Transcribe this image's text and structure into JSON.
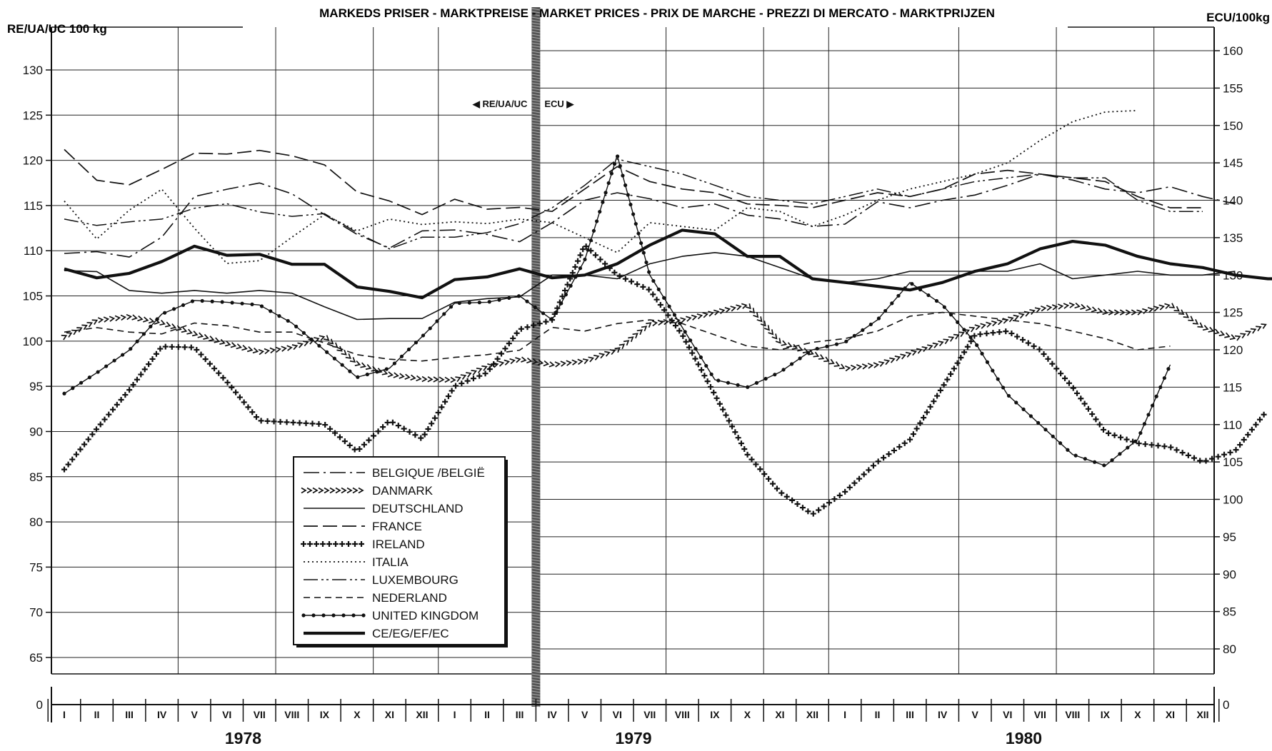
{
  "chart_data": {
    "type": "line",
    "title": "MARKEDS PRISER - MARKTPREISE - MARKET PRICES - PRIX DE MARCHE - PREZZI DI MERCATO - MARKTPRIJZEN",
    "ylabel_left": "RE/UA/UC 100 kg",
    "ylabel_right": "ECU/100kg",
    "left_axis_note": "◀ RE/UA/UC",
    "right_axis_note": "ECU ▶",
    "grid": true,
    "legend_position": "bottom-left",
    "y_left": {
      "range": [
        60,
        135
      ],
      "ticks": [
        65,
        70,
        75,
        80,
        85,
        90,
        95,
        100,
        105,
        110,
        115,
        120,
        125,
        130
      ],
      "zero_tick": 0
    },
    "y_right": {
      "range": [
        75,
        165
      ],
      "ticks": [
        80,
        85,
        90,
        95,
        100,
        105,
        110,
        115,
        120,
        125,
        130,
        135,
        140,
        145,
        150,
        155,
        160
      ],
      "zero_tick": 0
    },
    "months": [
      "I",
      "II",
      "III",
      "IV",
      "V",
      "VI",
      "VII",
      "VIII",
      "IX",
      "X",
      "XI",
      "XII",
      "I",
      "II",
      "III",
      "IV",
      "V",
      "VI",
      "VII",
      "VIII",
      "IX",
      "X",
      "XI",
      "XII",
      "I",
      "II",
      "III",
      "IV",
      "V",
      "VI",
      "VII",
      "VIII",
      "IX",
      "X",
      "XI",
      "XII"
    ],
    "years": [
      {
        "label": "1978",
        "from": 0,
        "to": 11
      },
      {
        "label": "1979",
        "from": 12,
        "to": 23
      },
      {
        "label": "1980",
        "from": 24,
        "to": 35
      }
    ],
    "unit_switch_after_index": 14.5,
    "series": [
      {
        "name": "BELGIQUE /BELGIË",
        "style": "dashdot",
        "left": [
          109.7,
          109.9,
          109.3,
          111.5,
          116.0,
          116.8,
          117.5,
          116.3,
          114.0,
          111.8,
          110.3,
          112.2,
          112.3,
          111.8,
          111.0
        ],
        "right": [
          137.0,
          140.0,
          141.0,
          140.2,
          139.0,
          139.5,
          138.0,
          137.5,
          136.5,
          136.8,
          139.8,
          139.0,
          140.0,
          140.7,
          142.0,
          143.5,
          142.7,
          141.5,
          141.0,
          141.8,
          140.5,
          139.5
        ]
      },
      {
        "name": "DANMARK",
        "style": "chevron",
        "left": [
          100.5,
          102.3,
          102.7,
          102.0,
          100.8,
          99.7,
          98.8,
          99.3,
          100.5,
          97.5,
          96.3,
          95.8,
          95.7,
          97.2,
          98.0
        ],
        "right": [
          118.0,
          118.5,
          120.0,
          123.5,
          124.0,
          125.0,
          126.0,
          121.0,
          119.5,
          117.5,
          118.0,
          119.5,
          121.0,
          123.0,
          124.0,
          125.5,
          126.0,
          125.0,
          125.0,
          126.0,
          123.0,
          121.5,
          123.5
        ]
      },
      {
        "name": "DEUTSCHLAND",
        "style": "solid",
        "left": [
          107.8,
          107.7,
          105.6,
          105.3,
          105.6,
          105.3,
          105.6,
          105.3,
          103.8,
          102.4,
          102.5,
          102.5,
          104.3,
          104.7,
          104.9
        ],
        "right": [
          130.0,
          130.0,
          129.5,
          131.5,
          132.5,
          133.0,
          132.5,
          131.0,
          129.5,
          129.0,
          129.5,
          130.5,
          130.5,
          130.5,
          130.5,
          131.5,
          129.5,
          130.0,
          130.5,
          130.0,
          130.0,
          130.5
        ]
      },
      {
        "name": "FRANCE",
        "style": "longdash",
        "left": [
          121.2,
          117.8,
          117.3,
          119.0,
          120.8,
          120.7,
          121.1,
          120.5,
          119.5,
          116.5,
          115.5,
          114.0,
          115.7,
          114.6,
          114.8
        ],
        "right": [
          138.5,
          141.5,
          144.5,
          142.5,
          141.5,
          141.0,
          139.5,
          139.3,
          139.0,
          140.0,
          141.0,
          140.5,
          141.5,
          143.5,
          144.0,
          143.5,
          143.0,
          142.5,
          140.5,
          139.0,
          139.0
        ]
      },
      {
        "name": "IRELAND",
        "style": "cross",
        "left": [
          85.8,
          90.3,
          94.6,
          99.4,
          99.3,
          95.5,
          91.2,
          91.0,
          90.8,
          87.8,
          91.2,
          89.2,
          95.0,
          96.5,
          101.3
        ],
        "right": [
          124.0,
          134.0,
          130.0,
          128.0,
          122.0,
          114.0,
          106.0,
          101.0,
          98.0,
          101.0,
          105.0,
          108.0,
          115.0,
          122.0,
          122.5,
          120.0,
          115.0,
          109.0,
          107.5,
          107.0,
          105.0,
          106.5,
          112.0
        ]
      },
      {
        "name": "ITALIA",
        "style": "dotted",
        "left": [
          115.5,
          111.3,
          114.5,
          116.8,
          112.5,
          108.6,
          108.9,
          111.5,
          114.0,
          112.2,
          113.5,
          112.9,
          113.2,
          113.0,
          113.5
        ],
        "right": [
          137.0,
          135.0,
          133.0,
          137.0,
          136.5,
          136.0,
          139.0,
          138.5,
          136.5,
          138.0,
          140.0,
          141.5,
          142.5,
          143.5,
          145.0,
          148.0,
          150.5,
          151.8,
          152.0
        ]
      },
      {
        "name": "LUXEMBOURG",
        "style": "dashdotdot",
        "left": [
          113.5,
          112.8,
          113.2,
          113.5,
          114.7,
          115.2,
          114.3,
          113.8,
          114.1,
          112.0,
          110.2,
          111.5,
          111.5,
          112.0,
          113.0
        ],
        "right": [
          139.0,
          142.0,
          145.5,
          144.5,
          143.5,
          142.0,
          140.5,
          140.0,
          139.5,
          140.5,
          141.5,
          140.5,
          141.5,
          142.5,
          143.0,
          143.5,
          143.0,
          143.0,
          140.0,
          138.5,
          138.5
        ]
      },
      {
        "name": "NEDERLAND",
        "style": "dashed",
        "left": [
          101.0,
          101.5,
          101.0,
          100.8,
          102.0,
          101.7,
          101.0,
          101.0,
          99.8,
          98.5,
          98.0,
          97.8,
          98.2,
          98.5,
          99.0
        ],
        "right": [
          123.0,
          122.5,
          123.5,
          124.0,
          123.5,
          122.0,
          120.5,
          120.0,
          121.0,
          121.5,
          122.5,
          124.5,
          125.0,
          124.5,
          124.0,
          123.5,
          122.5,
          121.5,
          120.0,
          120.5
        ]
      },
      {
        "name": "UNITED KINGDOM",
        "style": "dotline",
        "left": [
          94.2,
          96.5,
          99.0,
          103.0,
          104.5,
          104.3,
          104.0,
          102.0,
          99.0,
          96.0,
          97.0,
          100.5,
          104.2,
          104.3,
          105.0
        ],
        "right": [
          124.0,
          132.0,
          146.0,
          130.0,
          123.0,
          116.0,
          115.0,
          117.0,
          120.0,
          121.0,
          124.0,
          129.0,
          126.0,
          121.0,
          114.0,
          110.0,
          106.0,
          104.5,
          108.0,
          118.0
        ]
      },
      {
        "name": "CE/EG/EF/EC",
        "style": "bold",
        "left": [
          108.0,
          107.0,
          107.5,
          108.8,
          110.5,
          109.5,
          109.6,
          108.5,
          108.5,
          106.0,
          105.5,
          104.8,
          106.8,
          107.1,
          108.0,
          107.0
        ],
        "right": [
          130.0,
          131.5,
          134.0,
          136.0,
          135.5,
          132.5,
          132.5,
          129.5,
          129.0,
          128.5,
          128.0,
          129.0,
          130.5,
          131.5,
          133.5,
          134.5,
          134.0,
          132.5,
          131.5,
          131.0,
          130.0,
          129.5,
          129.5,
          132.0
        ]
      }
    ]
  }
}
